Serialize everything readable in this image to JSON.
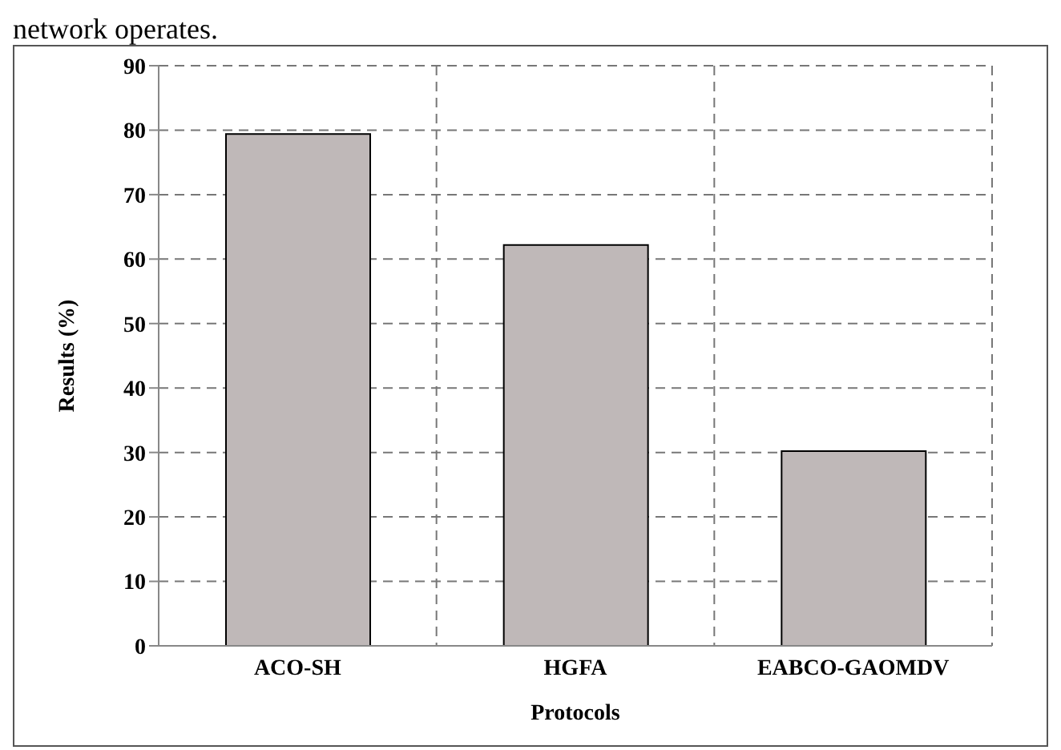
{
  "chart_data": {
    "type": "bar",
    "xlabel": "Protocols",
    "ylabel": "Results (%)",
    "annotations": [
      "network operates."
    ],
    "categories": [
      "ACO-SH",
      "HGFA",
      "EABCO-GAOMDV"
    ],
    "values": [
      79.4,
      62.2,
      30.2
    ],
    "color": "#bfb8b8",
    "ylim": [
      0,
      90
    ],
    "yticks": [
      0,
      10,
      20,
      30,
      40,
      50,
      60,
      70,
      80,
      90
    ],
    "grid": true
  }
}
